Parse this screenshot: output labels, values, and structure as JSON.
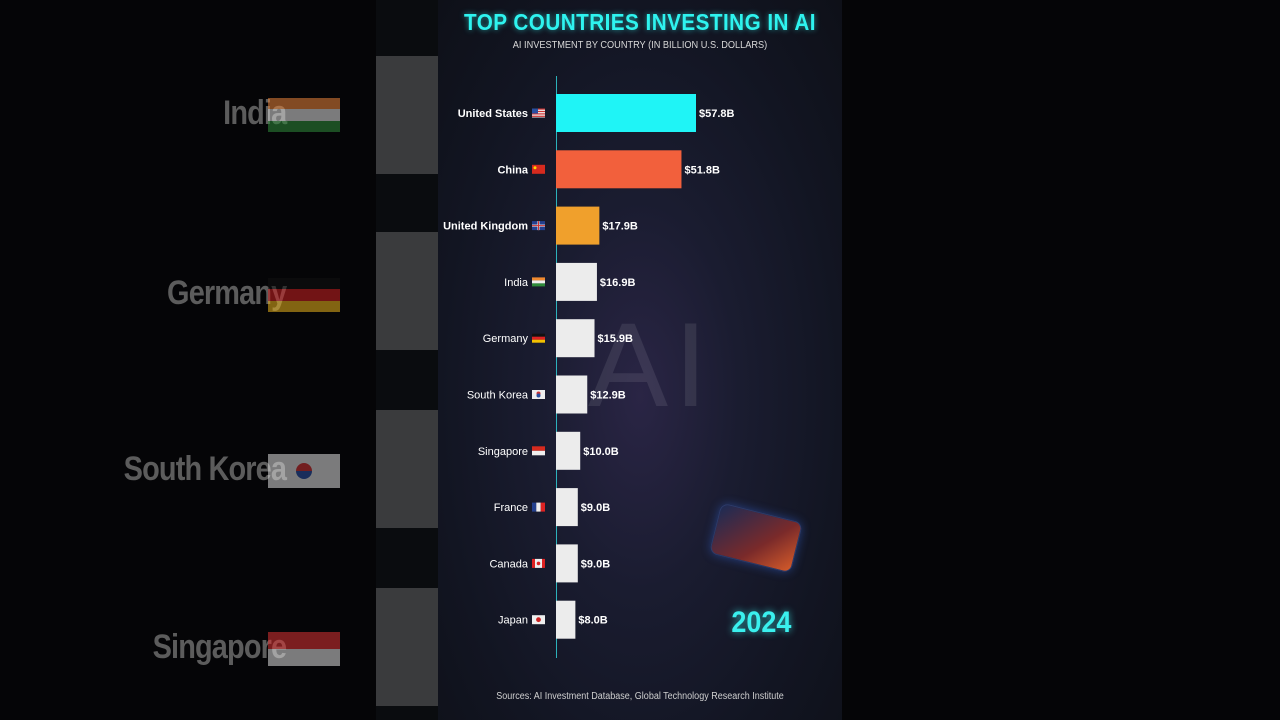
{
  "chart_data": {
    "type": "bar",
    "orientation": "horizontal",
    "title": "TOP COUNTRIES INVESTING IN AI",
    "subtitle": "AI INVESTMENT BY COUNTRY (IN BILLION U.S. DOLLARS)",
    "categories": [
      "United States",
      "China",
      "United Kingdom",
      "India",
      "Germany",
      "South Korea",
      "Singapore",
      "France",
      "Canada",
      "Japan"
    ],
    "values": [
      57.8,
      51.8,
      17.9,
      16.9,
      15.9,
      12.9,
      10.0,
      9.0,
      9.0,
      8.0
    ],
    "value_labels": [
      "$57.8B",
      "$51.8B",
      "$17.9B",
      "$16.9B",
      "$15.9B",
      "$12.9B",
      "$10.0B",
      "$9.0B",
      "$9.0B",
      "$8.0B"
    ],
    "bar_colors": [
      "#1ff4f6",
      "#f2603c",
      "#f0a02c",
      "#ececec",
      "#ececec",
      "#ececec",
      "#ececec",
      "#ececec",
      "#ececec",
      "#ececec"
    ],
    "flag_icons": [
      "us-flag-icon",
      "china-flag-icon",
      "uk-flag-icon",
      "india-flag-icon",
      "germany-flag-icon",
      "south-korea-flag-icon",
      "singapore-flag-icon",
      "france-flag-icon",
      "canada-flag-icon",
      "japan-flag-icon"
    ],
    "xlim": [
      0,
      57.8
    ],
    "year": "2024",
    "source": "Sources: AI Investment Database, Global Technology Research Institute"
  },
  "background_ai_text": "AI",
  "side_labels": {
    "left": [
      "India",
      "Germany",
      "South Korea",
      "Singapore"
    ]
  },
  "colors": {
    "accent": "#2ef3ef",
    "frame_bg": "#151827"
  }
}
